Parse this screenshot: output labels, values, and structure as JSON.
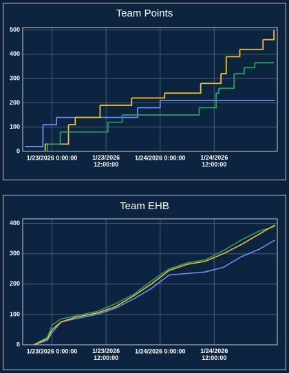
{
  "chart_data": [
    {
      "type": "step-line",
      "title": "Team Points",
      "xlim": [
        "1/22/2026 17:30:00",
        "1/25/2026 2:00:00"
      ],
      "xticks": [
        "1/23/2026 0:00:00",
        "1/23/2026 12:00:00",
        "1/24/2026 0:00:00",
        "1/24/2026 12:00:00"
      ],
      "ylim": [
        0,
        510
      ],
      "yticks": [
        0,
        100,
        200,
        300,
        400,
        500
      ],
      "grid": true,
      "series": [
        {
          "color": "#6e8ff2",
          "x": [
            "1/22/2026 18:00:00",
            "1/22/2026 22:00:00",
            "1/23/2026 1:00:00",
            "1/23/2026 19:00:00",
            "1/24/2026 0:00:00",
            "1/25/2026 1:30:00"
          ],
          "values": [
            20,
            110,
            140,
            180,
            210,
            210
          ]
        },
        {
          "color": "#f2c230",
          "x": [
            "1/22/2026 22:00:00",
            "1/22/2026 22:30:00",
            "1/23/2026 3:40:00",
            "1/23/2026 5:10:00",
            "1/23/2026 10:40:00",
            "1/23/2026 17:40:00",
            "1/24/2026 1:00:00",
            "1/24/2026 9:00:00",
            "1/24/2026 13:30:00",
            "1/24/2026 14:40:00",
            "1/24/2026 17:40:00",
            "1/24/2026 22:50:00",
            "1/25/2026 1:15:00"
          ],
          "values": [
            0,
            30,
            110,
            140,
            190,
            220,
            240,
            280,
            320,
            390,
            420,
            460,
            500
          ]
        },
        {
          "color": "#2a9e62",
          "x": [
            "1/22/2026 22:00:00",
            "1/22/2026 23:00:00",
            "1/23/2026 1:50:00",
            "1/23/2026 12:25:00",
            "1/23/2026 15:35:00",
            "1/24/2026 8:40:00",
            "1/24/2026 12:25:00",
            "1/24/2026 13:00:00",
            "1/24/2026 16:25:00",
            "1/24/2026 18:40:00",
            "1/24/2026 21:00:00",
            "1/25/2026 1:15:00"
          ],
          "values": [
            0,
            30,
            80,
            120,
            150,
            180,
            240,
            260,
            320,
            345,
            365,
            365
          ]
        }
      ]
    },
    {
      "type": "line",
      "title": "Team EHB",
      "xlim": [
        "1/22/2026 17:30:00",
        "1/25/2026 2:00:00"
      ],
      "xticks": [
        "1/23/2026 0:00:00",
        "1/23/2026 12:00:00",
        "1/24/2026 0:00:00",
        "1/24/2026 12:00:00"
      ],
      "ylim": [
        0,
        415
      ],
      "yticks": [
        0,
        100,
        200,
        300,
        400
      ],
      "grid": true,
      "series": [
        {
          "color": "#6e8ff2",
          "x": [
            "1/22/2026 20:00:00",
            "1/22/2026 23:00:00",
            "1/23/2026 0:00:00",
            "1/23/2026 2:00:00",
            "1/23/2026 5:00:00",
            "1/23/2026 10:00:00",
            "1/23/2026 14:00:00",
            "1/23/2026 18:00:00",
            "1/23/2026 22:00:00",
            "1/24/2026 2:00:00",
            "1/24/2026 6:00:00",
            "1/24/2026 10:00:00",
            "1/24/2026 14:00:00",
            "1/24/2026 18:00:00",
            "1/24/2026 22:00:00",
            "1/25/2026 1:30:00"
          ],
          "values": [
            0,
            15,
            40,
            75,
            85,
            100,
            120,
            150,
            185,
            230,
            235,
            240,
            255,
            290,
            315,
            345
          ]
        },
        {
          "color": "#2a9e62",
          "x": [
            "1/22/2026 20:00:00",
            "1/22/2026 23:00:00",
            "1/23/2026 0:00:00",
            "1/23/2026 2:00:00",
            "1/23/2026 5:00:00",
            "1/23/2026 10:00:00",
            "1/23/2026 14:00:00",
            "1/23/2026 18:00:00",
            "1/23/2026 22:00:00",
            "1/24/2026 2:00:00",
            "1/24/2026 6:00:00",
            "1/24/2026 10:00:00",
            "1/24/2026 14:00:00",
            "1/24/2026 18:00:00",
            "1/24/2026 22:00:00",
            "1/25/2026 1:30:00"
          ],
          "values": [
            0,
            25,
            65,
            85,
            95,
            110,
            135,
            165,
            210,
            250,
            270,
            280,
            310,
            345,
            375,
            390
          ]
        },
        {
          "color": "#f2c230",
          "x": [
            "1/22/2026 20:00:00",
            "1/22/2026 23:00:00",
            "1/23/2026 0:00:00",
            "1/23/2026 2:00:00",
            "1/23/2026 5:00:00",
            "1/23/2026 10:00:00",
            "1/23/2026 14:00:00",
            "1/23/2026 18:00:00",
            "1/23/2026 22:00:00",
            "1/24/2026 2:00:00",
            "1/24/2026 6:00:00",
            "1/24/2026 10:00:00",
            "1/24/2026 14:00:00",
            "1/24/2026 18:00:00",
            "1/24/2026 22:00:00",
            "1/25/2026 1:30:00"
          ],
          "values": [
            0,
            20,
            50,
            75,
            90,
            105,
            125,
            160,
            200,
            245,
            265,
            275,
            300,
            330,
            365,
            395
          ]
        }
      ]
    }
  ]
}
